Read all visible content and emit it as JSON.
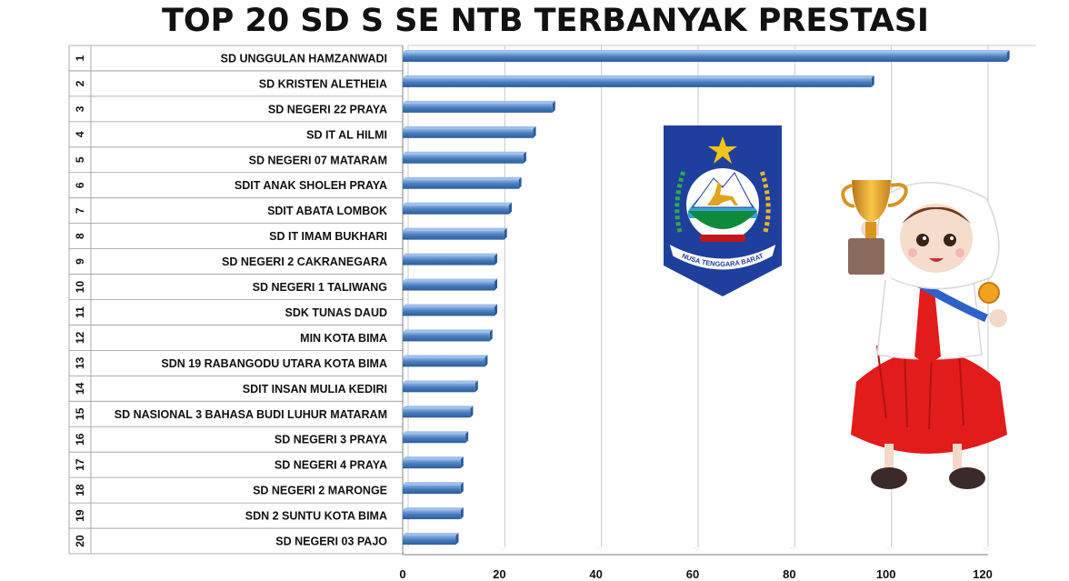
{
  "chart_data": {
    "type": "bar",
    "orientation": "horizontal",
    "title": "TOP 20 SD S SE NTB TERBANYAK PRESTASI",
    "xlabel": "",
    "ylabel": "",
    "xlim": [
      0,
      120
    ],
    "x_ticks": [
      "0",
      "20",
      "40",
      "60",
      "80",
      "100",
      "120"
    ],
    "grid": "vertical",
    "legend": "none",
    "bar_color": "#4a7ebf",
    "ranks": [
      "1",
      "2",
      "3",
      "4",
      "5",
      "6",
      "7",
      "8",
      "9",
      "10",
      "11",
      "12",
      "13",
      "14",
      "15",
      "16",
      "17",
      "18",
      "19",
      "20"
    ],
    "categories": [
      "SD UNGGULAN HAMZANWADI",
      "SD KRISTEN ALETHEIA",
      "SD NEGERI 22 PRAYA",
      "SD IT AL HILMI",
      "SD NEGERI 07 MATARAM",
      "SDIT ANAK SHOLEH PRAYA",
      "SDIT ABATA LOMBOK",
      "SD IT IMAM BUKHARI",
      "SD NEGERI 2 CAKRANEGARA",
      "SD NEGERI 1 TALIWANG",
      "SDK TUNAS DAUD",
      "MIN KOTA BIMA",
      "SDN 19 RABANGODU UTARA KOTA BIMA",
      "SDIT INSAN MULIA KEDIRI",
      "SD NASIONAL 3 BAHASA BUDI LUHUR MATARAM",
      "SD NEGERI 3 PRAYA",
      "SD NEGERI 4 PRAYA",
      "SD NEGERI 2 MARONGE",
      "SDN 2 SUNTU KOTA BIMA",
      "SD NEGERI 03 PAJO"
    ],
    "values": [
      125,
      97,
      31,
      27,
      25,
      24,
      22,
      21,
      19,
      19,
      19,
      18,
      17,
      15,
      14,
      13,
      12,
      12,
      12,
      11
    ]
  },
  "logo": {
    "name": "ntb-province-emblem",
    "ribbon_text": "NUSA TENGGARA BARAT",
    "colors": {
      "shield": "#1f3f9c",
      "star": "#f2c417",
      "mountain": "#ffffff",
      "ground": "#0d8a3a",
      "deer": "#e0a31c",
      "ribbon": "#c4161c"
    }
  },
  "illustration": {
    "name": "student-girl-holding-trophy",
    "colors": {
      "skirt": "#e21b1b",
      "shirt": "#ffffff",
      "hijab": "#ffffff",
      "trophy": "#e8a423",
      "sash": "#2f62c8"
    }
  }
}
